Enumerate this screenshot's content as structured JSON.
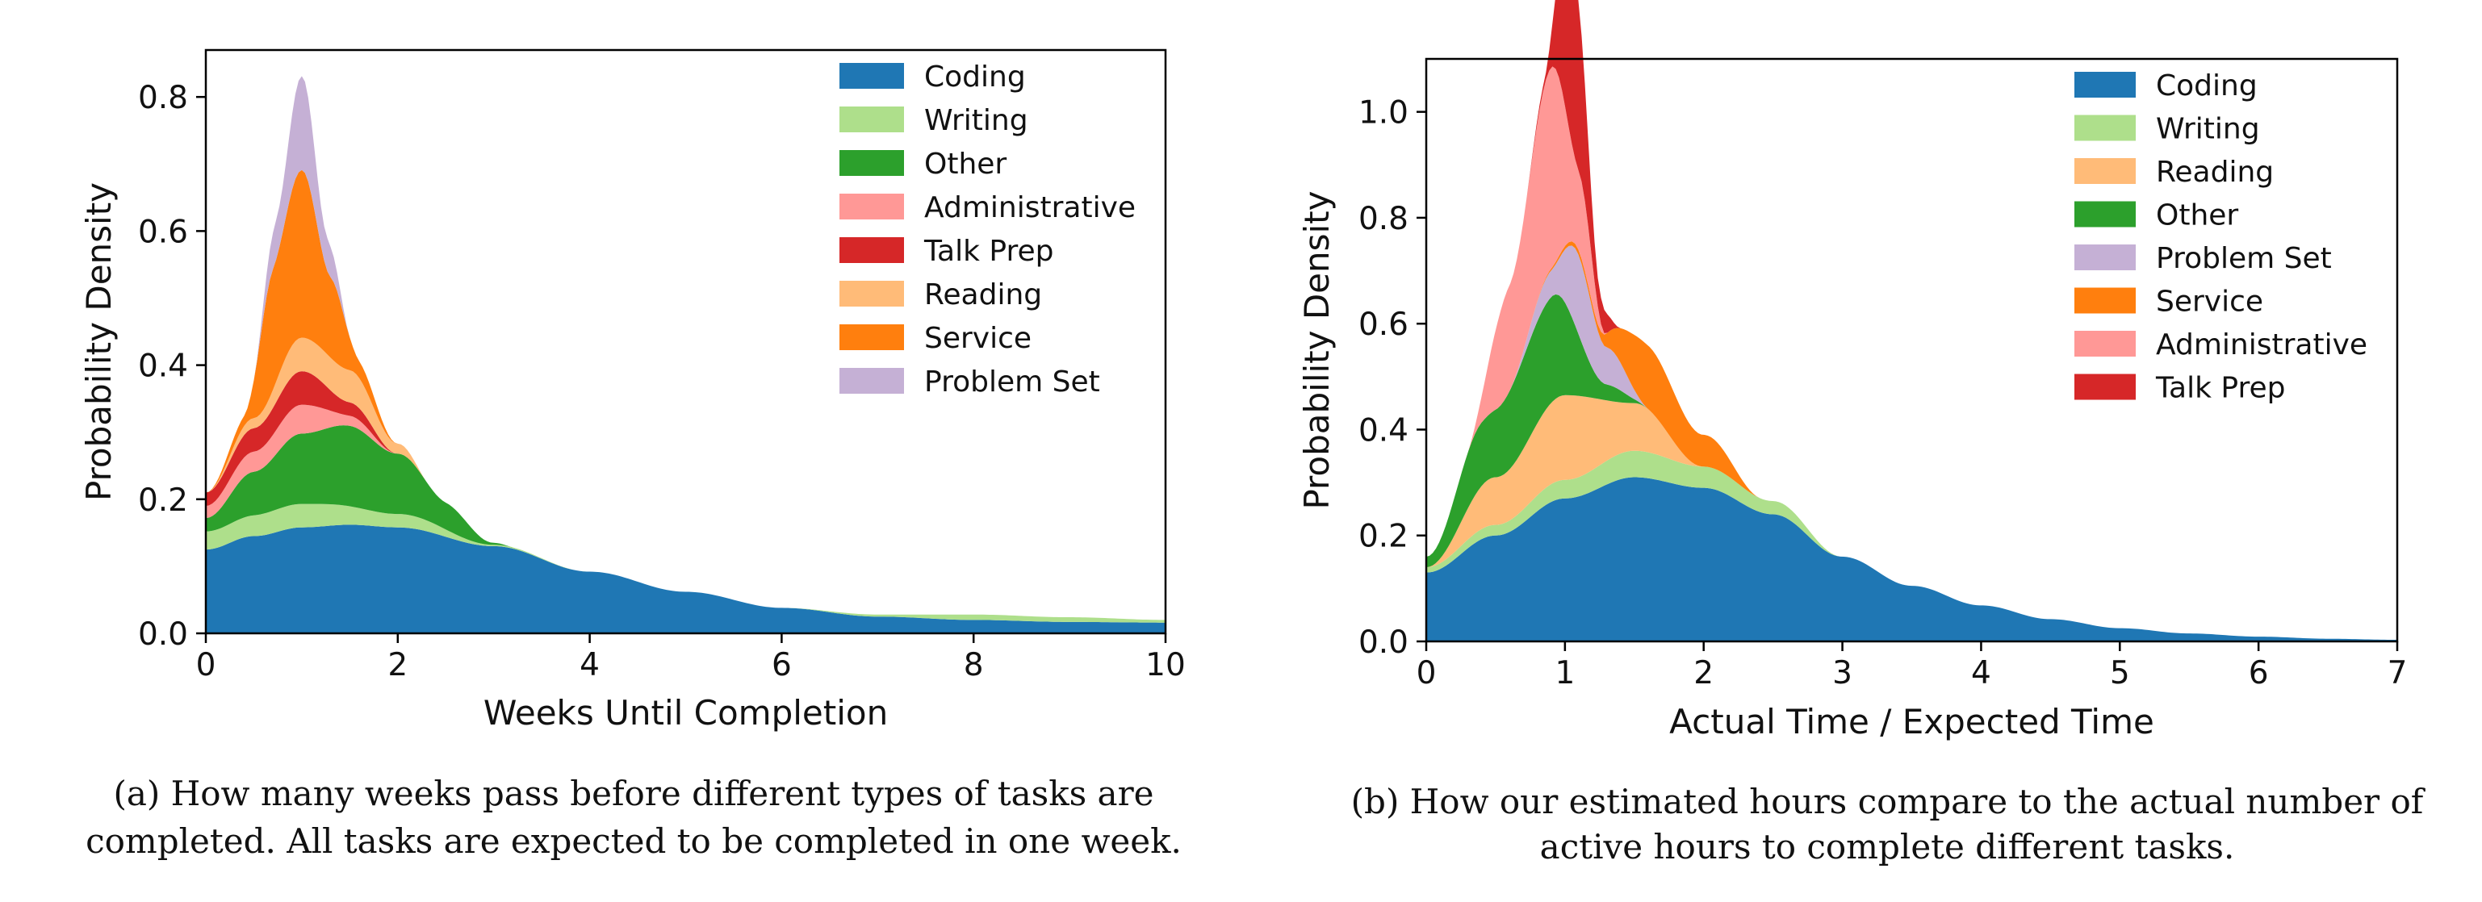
{
  "chart_data": [
    {
      "type": "area",
      "panel": "a",
      "xlabel": "Weeks Until Completion",
      "ylabel": "Probability Density",
      "xlim": [
        0,
        10
      ],
      "ylim": [
        0,
        0.87
      ],
      "xticks": [
        0,
        2,
        4,
        6,
        8,
        10
      ],
      "yticks": [
        0.0,
        0.2,
        0.4,
        0.6,
        0.8
      ],
      "tick_labels_x": [
        "0",
        "2",
        "4",
        "6",
        "8",
        "10"
      ],
      "tick_labels_y": [
        "0.0",
        "0.2",
        "0.4",
        "0.6",
        "0.8"
      ],
      "legend_position": "top-right",
      "grid": false,
      "caption_lines": [
        "(a) How many weeks pass before different types of tasks are",
        "completed.  All tasks are expected to be completed in one week."
      ],
      "series": [
        {
          "name": "Coding",
          "color": "#1f77b4",
          "points": [
            [
              0,
              0.125
            ],
            [
              0.5,
              0.145
            ],
            [
              1,
              0.158
            ],
            [
              1.5,
              0.162
            ],
            [
              2,
              0.158
            ],
            [
              3,
              0.13
            ],
            [
              4,
              0.092
            ],
            [
              5,
              0.062
            ],
            [
              6,
              0.038
            ],
            [
              7,
              0.025
            ],
            [
              8,
              0.02
            ],
            [
              9,
              0.017
            ],
            [
              10,
              0.016
            ]
          ]
        },
        {
          "name": "Writing",
          "color": "#aedf8b",
          "points": [
            [
              0,
              0.027
            ],
            [
              1,
              0.035
            ],
            [
              2,
              0.02
            ],
            [
              3,
              0.002
            ],
            [
              4,
              0
            ],
            [
              6,
              0
            ],
            [
              7,
              0.003
            ],
            [
              8,
              0.008
            ],
            [
              9,
              0.007
            ],
            [
              10,
              0.004
            ]
          ]
        },
        {
          "name": "Other",
          "color": "#2ca02c",
          "points": [
            [
              0,
              0.02
            ],
            [
              0.5,
              0.065
            ],
            [
              1,
              0.105
            ],
            [
              1.5,
              0.12
            ],
            [
              2,
              0.09
            ],
            [
              2.5,
              0.04
            ],
            [
              3,
              0.003
            ],
            [
              3.2,
              0
            ]
          ]
        },
        {
          "name": "Administrative",
          "color": "#ff9896",
          "points": [
            [
              0,
              0.018
            ],
            [
              0.5,
              0.03
            ],
            [
              1,
              0.043
            ],
            [
              1.5,
              0.015
            ],
            [
              2,
              0
            ]
          ]
        },
        {
          "name": "Talk Prep",
          "color": "#d62728",
          "points": [
            [
              0,
              0.02
            ],
            [
              0.5,
              0.035
            ],
            [
              1,
              0.05
            ],
            [
              1.5,
              0.02
            ],
            [
              2,
              0
            ]
          ]
        },
        {
          "name": "Reading",
          "color": "#ffbb78",
          "points": [
            [
              0,
              0
            ],
            [
              0.5,
              0.015
            ],
            [
              1,
              0.05
            ],
            [
              1.5,
              0.048
            ],
            [
              2,
              0.015
            ],
            [
              2.3,
              0
            ]
          ]
        },
        {
          "name": "Service",
          "color": "#ff7f0e",
          "points": [
            [
              0,
              0
            ],
            [
              0.4,
              0.015
            ],
            [
              0.7,
              0.18
            ],
            [
              1,
              0.25
            ],
            [
              1.3,
              0.12
            ],
            [
              1.6,
              0.025
            ],
            [
              2,
              0
            ]
          ]
        },
        {
          "name": "Problem Set",
          "color": "#c5b0d5",
          "points": [
            [
              0.5,
              0
            ],
            [
              0.75,
              0.06
            ],
            [
              1,
              0.14
            ],
            [
              1.25,
              0.05
            ],
            [
              1.5,
              0
            ]
          ]
        }
      ]
    },
    {
      "type": "area",
      "panel": "b",
      "xlabel": "Actual Time / Expected Time",
      "ylabel": "Probability Density",
      "xlim": [
        0,
        7
      ],
      "ylim": [
        0,
        1.1
      ],
      "xticks": [
        0,
        1,
        2,
        3,
        4,
        5,
        6,
        7
      ],
      "yticks": [
        0.0,
        0.2,
        0.4,
        0.6,
        0.8,
        1.0
      ],
      "tick_labels_x": [
        "0",
        "1",
        "2",
        "3",
        "4",
        "5",
        "6",
        "7"
      ],
      "tick_labels_y": [
        "0.0",
        "0.2",
        "0.4",
        "0.6",
        "0.8",
        "1.0"
      ],
      "legend_position": "top-right",
      "grid": false,
      "caption_lines": [
        "(b) How our estimated hours compare to the actual number of",
        "active hours to complete different tasks."
      ],
      "series": [
        {
          "name": "Coding",
          "color": "#1f77b4",
          "points": [
            [
              0,
              0.13
            ],
            [
              0.5,
              0.2
            ],
            [
              1,
              0.27
            ],
            [
              1.5,
              0.31
            ],
            [
              2,
              0.29
            ],
            [
              2.5,
              0.24
            ],
            [
              3,
              0.16
            ],
            [
              3.5,
              0.105
            ],
            [
              4,
              0.068
            ],
            [
              4.5,
              0.042
            ],
            [
              5,
              0.025
            ],
            [
              5.5,
              0.015
            ],
            [
              6,
              0.009
            ],
            [
              6.5,
              0.005
            ],
            [
              7,
              0.003
            ]
          ]
        },
        {
          "name": "Writing",
          "color": "#aedf8b",
          "points": [
            [
              0,
              0.01
            ],
            [
              0.5,
              0.02
            ],
            [
              1,
              0.035
            ],
            [
              1.5,
              0.05
            ],
            [
              2,
              0.04
            ],
            [
              2.5,
              0.025
            ],
            [
              3,
              0
            ]
          ]
        },
        {
          "name": "Reading",
          "color": "#ffbb78",
          "points": [
            [
              0,
              0
            ],
            [
              0.5,
              0.09
            ],
            [
              1,
              0.16
            ],
            [
              1.5,
              0.09
            ],
            [
              2,
              0
            ],
            [
              2.5,
              0
            ]
          ]
        },
        {
          "name": "Other",
          "color": "#2ca02c",
          "points": [
            [
              0,
              0.02
            ],
            [
              0.4,
              0.12
            ],
            [
              0.9,
              0.2
            ],
            [
              1.3,
              0.03
            ],
            [
              1.6,
              0
            ]
          ]
        },
        {
          "name": "Problem Set",
          "color": "#c5b0d5",
          "points": [
            [
              0.6,
              0
            ],
            [
              0.9,
              0.05
            ],
            [
              1.1,
              0.15
            ],
            [
              1.3,
              0.07
            ],
            [
              1.6,
              0
            ]
          ]
        },
        {
          "name": "Service",
          "color": "#ff7f0e",
          "points": [
            [
              0.7,
              0
            ],
            [
              1.2,
              0.01
            ],
            [
              1.6,
              0.12
            ],
            [
              2.0,
              0.06
            ],
            [
              2.4,
              0
            ]
          ]
        },
        {
          "name": "Administrative",
          "color": "#ff9896",
          "points": [
            [
              0.3,
              0
            ],
            [
              0.6,
              0.2
            ],
            [
              0.9,
              0.38
            ],
            [
              1.1,
              0.15
            ],
            [
              1.3,
              0
            ]
          ]
        },
        {
          "name": "Talk Prep",
          "color": "#d62728",
          "points": [
            [
              0.7,
              0
            ],
            [
              0.85,
              0.01
            ],
            [
              1.05,
              0.36
            ],
            [
              1.25,
              0.05
            ],
            [
              1.4,
              0
            ]
          ]
        }
      ]
    }
  ]
}
